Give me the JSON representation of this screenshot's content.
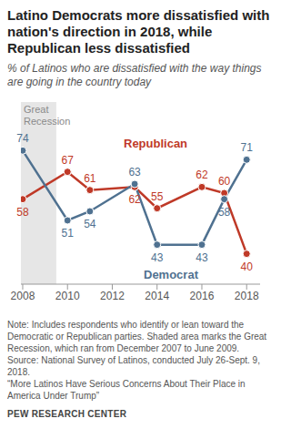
{
  "chart_data": {
    "type": "line",
    "title": "Latino Democrats more dissatisfied with nation's direction in 2018, while Republican less dissatisfied",
    "subtitle": "% of Latinos who are dissatisfied with the way things are going in the country today",
    "x": [
      2008,
      2010,
      2011,
      2013,
      2014,
      2016,
      2017,
      2018
    ],
    "series": [
      {
        "name": "Republican",
        "color": "#bf3927",
        "values": [
          58,
          67,
          61,
          62,
          55,
          62,
          60,
          40
        ]
      },
      {
        "name": "Democrat",
        "color": "#4f7190",
        "values": [
          74,
          51,
          54,
          63,
          43,
          43,
          58,
          71
        ]
      }
    ],
    "xlim": [
      2007.92,
      2018.6
    ],
    "xticks": [
      2008,
      2010,
      2012,
      2014,
      2016,
      2018
    ],
    "ylim": [
      30,
      90
    ],
    "tick_labels": "x",
    "data_labels": true,
    "marker": "circle",
    "shaded_period": {
      "start": 2007.92,
      "end": 2009.5,
      "label": "Great Recession"
    },
    "notes": [
      "Note: Includes respondents who identify or lean toward the Democratic or Republican parties. Shaded area marks the Great Recession, which ran from December 2007 to June 2009.",
      "Source: National Survey of Latinos, conducted July 26-Sept. 9, 2018.",
      "“More Latinos Have Serious Concerns About Their Place in America Under Trump”"
    ],
    "footer": "PEW RESEARCH CENTER"
  }
}
